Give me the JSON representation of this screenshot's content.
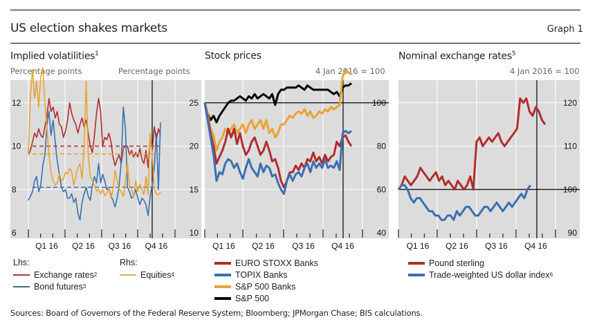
{
  "header": {
    "title": "US election shakes markets",
    "graph_label": "Graph 1"
  },
  "colors": {
    "red": "#b22b2b",
    "blue": "#3a6fb0",
    "orange": "#e8a431",
    "black": "#000000",
    "panel_bg": "#dcdcdc"
  },
  "chart_data": [
    {
      "type": "line",
      "title": "Implied volatilities",
      "title_footnote": "1",
      "ylabel_left": "Percentage points",
      "ylabel_right": "Percentage points",
      "x_tick_labels": [
        "Q1 16",
        "Q2 16",
        "Q3 16",
        "Q4 16"
      ],
      "ylim_left": [
        6,
        14
      ],
      "yticks_left": [
        6,
        8,
        10,
        12
      ],
      "ylim_right": [
        10,
        30
      ],
      "yticks_right": [
        10,
        15,
        20,
        25
      ],
      "election_marker": 0.835,
      "legend": {
        "lhs_label": "Lhs:",
        "rhs_label": "Rhs:"
      },
      "series": [
        {
          "name": "Exchange rates",
          "footnote": "2",
          "axis": "left",
          "color": "red",
          "values": [
            9.6,
            9.8,
            10.2,
            10.6,
            10.4,
            10.8,
            10.5,
            10.4,
            10.9,
            11.4,
            12.2,
            11.6,
            11.8,
            11.3,
            11.6,
            11.0,
            10.9,
            10.4,
            10.7,
            11.2,
            12.0,
            11.5,
            11.2,
            11.0,
            10.6,
            11.0,
            11.3,
            10.9,
            11.2,
            10.6,
            10.0,
            9.7,
            10.5,
            11.5,
            12.2,
            11.6,
            10.0,
            10.4,
            10.3,
            10.6,
            10.2,
            9.5,
            9.1,
            9.4,
            9.6,
            9.2,
            9.9,
            10.0,
            10.0,
            9.6,
            9.8,
            9.5,
            9.7,
            9.5,
            9.9,
            9.4,
            9.2,
            9.8,
            9.0,
            10.4,
            9.8,
            10.9,
            10.3,
            10.8,
            10.5
          ],
          "mean": 10.0
        },
        {
          "name": "Bond futures",
          "footnote": "3",
          "axis": "left",
          "color": "blue",
          "values": [
            7.5,
            7.7,
            7.9,
            8.4,
            8.6,
            7.9,
            8.2,
            9.1,
            9.6,
            11.0,
            11.6,
            10.5,
            11.2,
            10.2,
            9.3,
            8.7,
            8.1,
            7.9,
            8.0,
            7.6,
            7.6,
            7.8,
            7.4,
            7.6,
            6.9,
            6.6,
            7.4,
            7.8,
            8.1,
            7.7,
            7.5,
            8.2,
            8.6,
            8.3,
            9.2,
            8.3,
            8.7,
            8.4,
            8.0,
            8.1,
            7.7,
            7.5,
            7.2,
            7.6,
            8.2,
            9.3,
            11.8,
            10.8,
            8.1,
            7.9,
            7.6,
            7.7,
            8.0,
            7.6,
            7.3,
            7.6,
            7.5,
            7.3,
            6.8,
            7.7,
            8.2,
            9.0,
            10.6,
            8.0,
            11.1
          ],
          "mean": 8.1
        },
        {
          "name": "Equities",
          "footnote": "4",
          "axis": "right",
          "color": "orange",
          "values": [
            19.0,
            26.0,
            28.8,
            25.5,
            27.5,
            24.5,
            28.0,
            29.0,
            25.0,
            22.0,
            19.0,
            17.0,
            16.0,
            15.5,
            15.8,
            16.8,
            16.0,
            16.2,
            17.0,
            16.8,
            17.5,
            17.0,
            15.5,
            16.5,
            17.5,
            18.0,
            16.2,
            20.0,
            27.5,
            19.0,
            16.5,
            16.0,
            15.5,
            14.8,
            15.0,
            14.5,
            15.0,
            14.3,
            14.6,
            15.2,
            14.0,
            15.0,
            17.2,
            16.0,
            15.0,
            14.8,
            14.2,
            16.0,
            18.0,
            15.5,
            15.0,
            14.2,
            16.0,
            14.8,
            15.6,
            15.0,
            14.4,
            16.5,
            14.4,
            21.5,
            19.0,
            15.2,
            14.5,
            14.4,
            14.7
          ],
          "mean": 19.1
        }
      ]
    },
    {
      "type": "line",
      "title": "Stock prices",
      "unit_label": "4 Jan 2016 = 100",
      "x_tick_labels": [
        "Q1 16",
        "Q2 16",
        "Q3 16",
        "Q4 16"
      ],
      "ylim": [
        40,
        120
      ],
      "yticks": [
        40,
        60,
        80,
        100
      ],
      "baseline": 100,
      "election_marker": 0.835,
      "series": [
        {
          "name": "EURO STOXX Banks",
          "color": "red",
          "values": [
            100,
            93,
            86,
            80,
            72,
            75,
            78,
            82,
            88,
            84,
            88,
            81,
            86,
            80,
            76,
            78,
            82,
            84,
            80,
            76,
            78,
            82,
            78,
            73,
            74,
            70,
            64,
            61,
            64,
            68,
            68,
            71,
            69,
            72,
            70,
            74,
            73,
            77,
            73,
            75,
            72,
            76,
            73,
            75,
            76,
            82,
            80,
            84,
            85,
            82,
            80
          ]
        },
        {
          "name": "TOPIX Banks",
          "color": "blue",
          "values": [
            100,
            92,
            84,
            76,
            64,
            68,
            67,
            72,
            74,
            73,
            70,
            72,
            68,
            65,
            70,
            74,
            70,
            68,
            66,
            72,
            68,
            71,
            70,
            66,
            67,
            63,
            60,
            58,
            64,
            67,
            64,
            67,
            68,
            66,
            70,
            72,
            68,
            73,
            70,
            72,
            70,
            74,
            70,
            71,
            70,
            73,
            69,
            86,
            87,
            86,
            87
          ]
        },
        {
          "name": "S&P 500 Banks",
          "color": "orange",
          "values": [
            100,
            95,
            88,
            85,
            78,
            82,
            84,
            88,
            86,
            88,
            90,
            86,
            88,
            90,
            86,
            90,
            92,
            88,
            90,
            92,
            88,
            92,
            86,
            88,
            84,
            86,
            90,
            90,
            92,
            94,
            93,
            95,
            96,
            95,
            97,
            94,
            96,
            93,
            94,
            96,
            95,
            97,
            96,
            98,
            97,
            98,
            99,
            112,
            115,
            114,
            113
          ]
        },
        {
          "name": "S&P 500",
          "color": "black",
          "values": [
            100,
            95,
            92,
            94,
            91,
            94,
            96,
            98,
            100,
            101,
            101,
            102,
            103,
            102,
            101,
            103,
            102,
            104,
            102,
            103,
            104,
            103,
            102,
            104,
            99,
            104,
            106,
            106,
            107,
            107,
            107,
            107,
            108,
            107,
            106,
            108,
            107,
            106,
            106,
            106,
            106,
            106,
            106,
            105,
            104,
            105,
            103,
            107,
            108,
            108,
            109
          ]
        }
      ]
    },
    {
      "type": "line",
      "title": "Nominal exchange rates",
      "title_footnote": "5",
      "unit_label": "4 Jan 2016 = 100",
      "x_tick_labels": [
        "Q1 16",
        "Q2 16",
        "Q3 16",
        "Q4 16"
      ],
      "ylim": [
        90,
        130
      ],
      "yticks": [
        90,
        100,
        110,
        120
      ],
      "baseline": 100,
      "election_marker": 0.835,
      "series": [
        {
          "name": "Pound sterling",
          "color": "red",
          "values": [
            100,
            101,
            103,
            102,
            101,
            102,
            103,
            105,
            104,
            103,
            102,
            103,
            104,
            102,
            103,
            101,
            102,
            101,
            100,
            102,
            101,
            100,
            101,
            103,
            100,
            111,
            112,
            110,
            111,
            112,
            111,
            112,
            113,
            111,
            110,
            111,
            112,
            113,
            114,
            121,
            120,
            121,
            118,
            117,
            119,
            118,
            116,
            115
          ]
        },
        {
          "name": "Trade-weighted US dollar index",
          "footnote": "6",
          "color": "blue",
          "values": [
            100,
            101,
            101,
            100,
            98,
            97,
            98,
            98,
            97,
            96,
            95,
            95,
            94,
            94,
            93,
            93,
            94,
            94,
            93,
            95,
            94,
            95,
            96,
            96,
            95,
            94,
            94,
            95,
            96,
            96,
            95,
            96,
            97,
            96,
            95,
            96,
            97,
            96,
            97,
            98,
            99,
            98,
            100,
            101
          ]
        }
      ]
    }
  ],
  "footer": {
    "sources": "Sources: Board of Governors of the Federal Reserve System; Bloomberg; JPMorgan Chase; BIS calculations."
  }
}
